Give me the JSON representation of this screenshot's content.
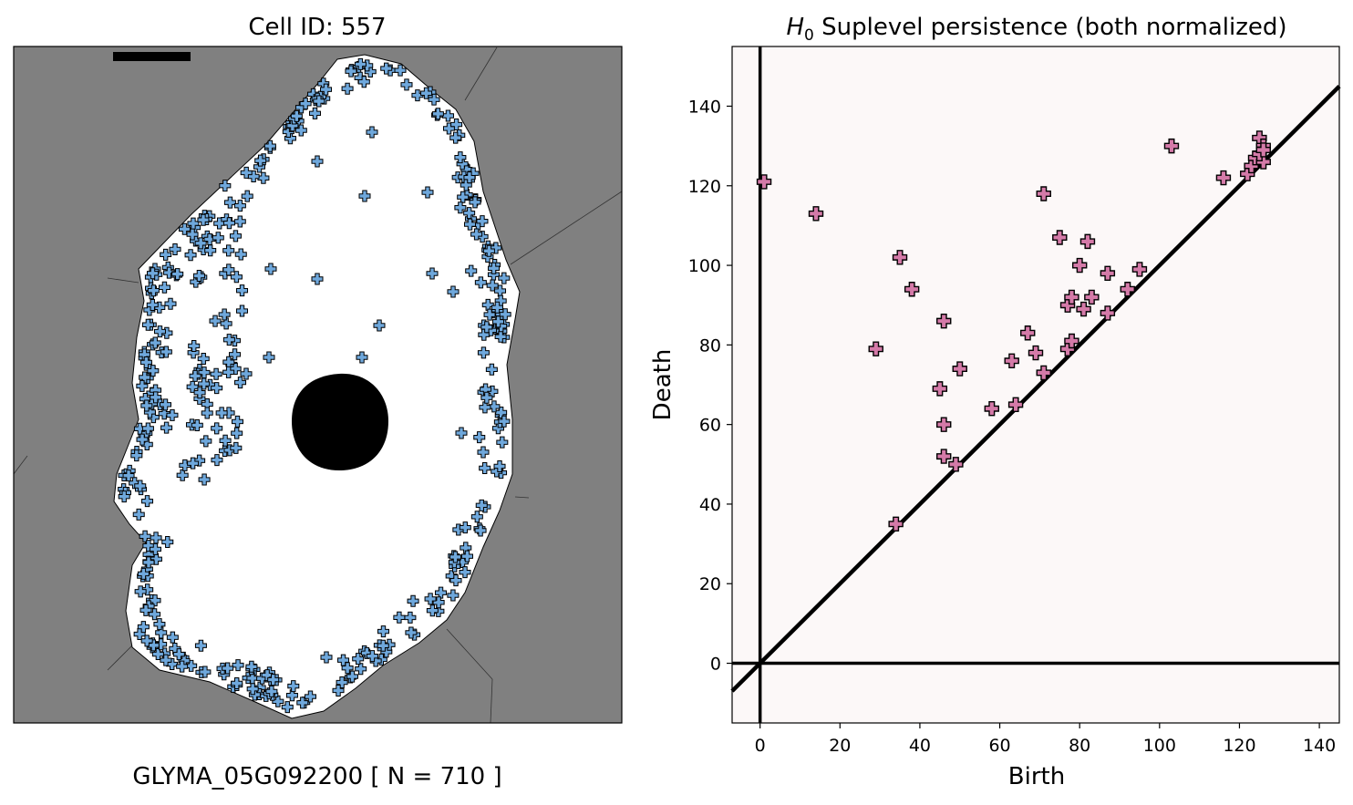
{
  "left_panel": {
    "title": "Cell ID: 557",
    "caption": "GLYMA_05G092200   [ N = 710 ]",
    "colors": {
      "background": "#808080",
      "cell": "#ffffff",
      "nucleus": "#000000",
      "marker_fill": "#6fa8dc",
      "marker_edge": "#000000"
    }
  },
  "chart_data": {
    "type": "scatter",
    "title_symbol": "H",
    "title_subscript": "0",
    "title_rest": " Suplevel persistence (both normalized)",
    "xlabel": "Birth",
    "ylabel": "Death",
    "xlim": [
      -7,
      145
    ],
    "ylim": [
      -15,
      155
    ],
    "xticks": [
      0,
      20,
      40,
      60,
      80,
      100,
      120,
      140
    ],
    "yticks": [
      0,
      20,
      40,
      60,
      80,
      100,
      120,
      140
    ],
    "background": "#fcf8f8",
    "marker_color": "#d47aa8",
    "marker_edge": "#000000",
    "diagonal": true,
    "points": [
      [
        1,
        121
      ],
      [
        14,
        113
      ],
      [
        29,
        79
      ],
      [
        34,
        35
      ],
      [
        35,
        102
      ],
      [
        38,
        94
      ],
      [
        45,
        69
      ],
      [
        46,
        60
      ],
      [
        46,
        52
      ],
      [
        46,
        86
      ],
      [
        49,
        50
      ],
      [
        50,
        74
      ],
      [
        58,
        64
      ],
      [
        63,
        76
      ],
      [
        64,
        65
      ],
      [
        67,
        83
      ],
      [
        69,
        78
      ],
      [
        71,
        73
      ],
      [
        71,
        118
      ],
      [
        75,
        107
      ],
      [
        77,
        79
      ],
      [
        77,
        90
      ],
      [
        78,
        92
      ],
      [
        78,
        81
      ],
      [
        80,
        100
      ],
      [
        81,
        89
      ],
      [
        82,
        106
      ],
      [
        83,
        92
      ],
      [
        87,
        88
      ],
      [
        87,
        98
      ],
      [
        92,
        94
      ],
      [
        95,
        99
      ],
      [
        103,
        130
      ],
      [
        116,
        122
      ],
      [
        122,
        123
      ],
      [
        123,
        125
      ],
      [
        124,
        127
      ],
      [
        125,
        132
      ],
      [
        126,
        126
      ],
      [
        126,
        130
      ],
      [
        125,
        128
      ],
      [
        126,
        129
      ]
    ]
  }
}
